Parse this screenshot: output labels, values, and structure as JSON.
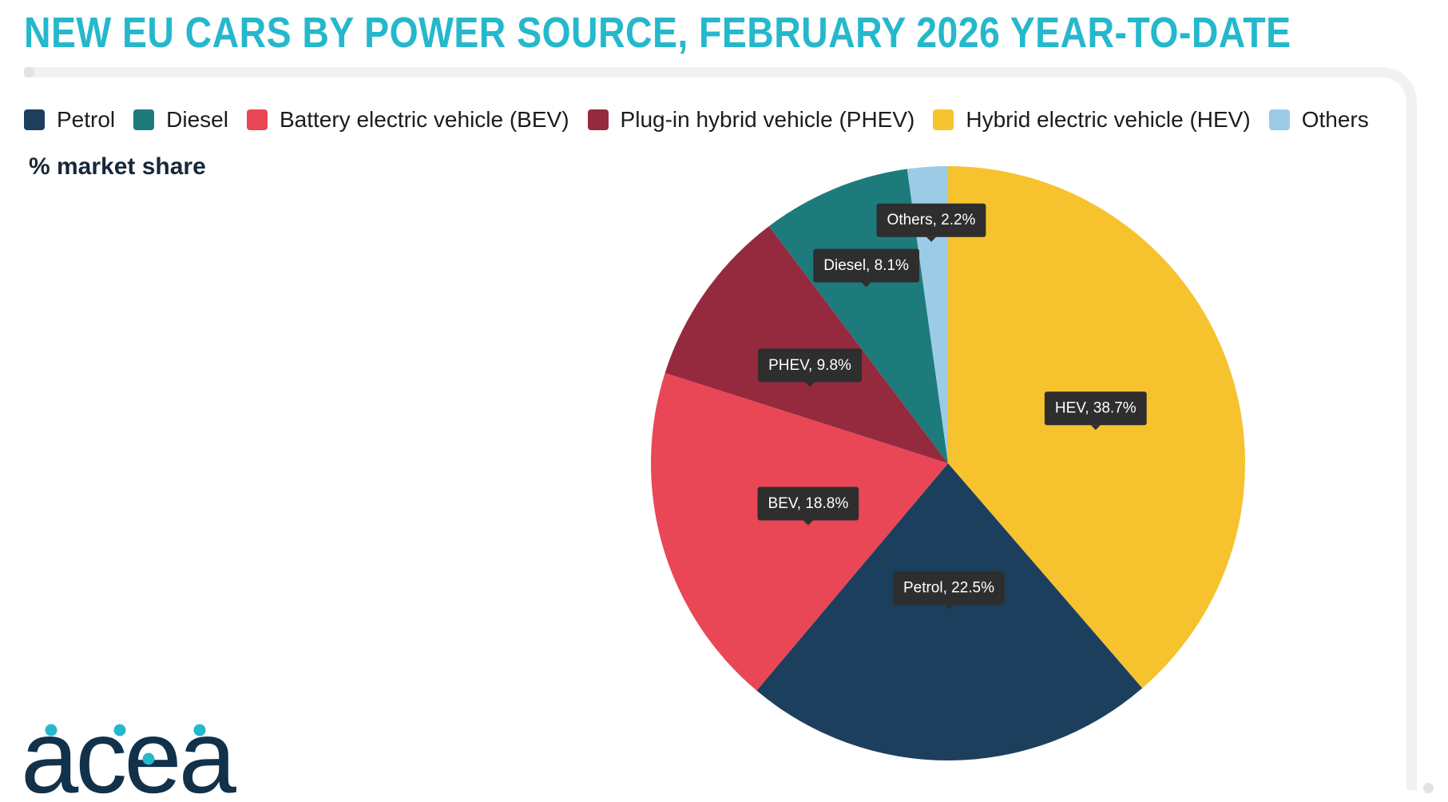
{
  "title": "NEW EU CARS BY POWER SOURCE, FEBRUARY 2026 YEAR-TO-DATE",
  "unit_label": "% market share",
  "logo_text": "acea",
  "colors": {
    "title": "#25b8cc",
    "logo_text": "#12314a",
    "logo_dots": "#25b8cc",
    "tooltip_bg": "#2e2e2e",
    "tooltip_text": "#ffffff"
  },
  "legend": [
    {
      "label": "Petrol",
      "color": "#1d3f5e"
    },
    {
      "label": "Diesel",
      "color": "#1d7b7c"
    },
    {
      "label": "Battery electric vehicle (BEV)",
      "color": "#e94756"
    },
    {
      "label": "Plug-in hybrid vehicle (PHEV)",
      "color": "#952a3f"
    },
    {
      "label": "Hybrid electric vehicle (HEV)",
      "color": "#f6c22e"
    },
    {
      "label": "Others",
      "color": "#9ccbe8"
    }
  ],
  "chart_data": {
    "type": "pie",
    "title": "NEW EU CARS BY POWER SOURCE, FEBRUARY 2026 YEAR-TO-DATE",
    "unit": "% market share",
    "start": "12 o'clock, clockwise",
    "legend_position": "top",
    "slices": [
      {
        "name": "HEV",
        "value": 38.7,
        "data_label": "HEV, 38.7%",
        "color": "#f6c22e"
      },
      {
        "name": "Petrol",
        "value": 22.5,
        "data_label": "Petrol, 22.5%",
        "color": "#1d3f5e"
      },
      {
        "name": "BEV",
        "value": 18.8,
        "data_label": "BEV, 18.8%",
        "color": "#e94756"
      },
      {
        "name": "PHEV",
        "value": 9.8,
        "data_label": "PHEV, 9.8%",
        "color": "#952a3f"
      },
      {
        "name": "Diesel",
        "value": 8.1,
        "data_label": "Diesel, 8.1%",
        "color": "#1d7b7c"
      },
      {
        "name": "Others",
        "value": 2.2,
        "data_label": "Others, 2.2%",
        "color": "#9ccbe8"
      }
    ]
  }
}
